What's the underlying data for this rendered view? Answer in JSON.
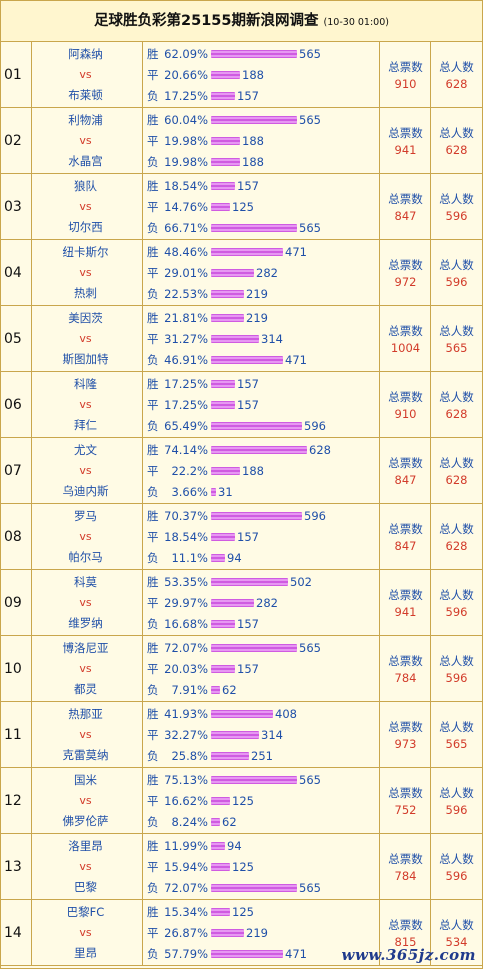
{
  "header": {
    "title": "足球胜负彩第25155期新浪网调查",
    "time": "(10-30 01:00)"
  },
  "labels": {
    "tickets": "总票数",
    "people": "总人数",
    "vs": "vs"
  },
  "max_count": 628,
  "colors": {
    "team": "#1f4fa8",
    "accent": "#d23b2a",
    "bar": "#c43dd9",
    "border": "#c9a64c"
  },
  "watermark": "www.365jz.com",
  "matches": [
    {
      "num": "01",
      "home": "阿森纳",
      "away": "布莱顿",
      "odds": [
        {
          "label": "胜",
          "pct": "62.09%",
          "count": 565
        },
        {
          "label": "平",
          "pct": "20.66%",
          "count": 188
        },
        {
          "label": "负",
          "pct": "17.25%",
          "count": 157
        }
      ],
      "tickets": "910",
      "people": "628"
    },
    {
      "num": "02",
      "home": "利物浦",
      "away": "水晶宫",
      "odds": [
        {
          "label": "胜",
          "pct": "60.04%",
          "count": 565
        },
        {
          "label": "平",
          "pct": "19.98%",
          "count": 188
        },
        {
          "label": "负",
          "pct": "19.98%",
          "count": 188
        }
      ],
      "tickets": "941",
      "people": "628"
    },
    {
      "num": "03",
      "home": "狼队",
      "away": "切尔西",
      "odds": [
        {
          "label": "胜",
          "pct": "18.54%",
          "count": 157
        },
        {
          "label": "平",
          "pct": "14.76%",
          "count": 125
        },
        {
          "label": "负",
          "pct": "66.71%",
          "count": 565
        }
      ],
      "tickets": "847",
      "people": "596"
    },
    {
      "num": "04",
      "home": "纽卡斯尔",
      "away": "热刺",
      "odds": [
        {
          "label": "胜",
          "pct": "48.46%",
          "count": 471
        },
        {
          "label": "平",
          "pct": "29.01%",
          "count": 282
        },
        {
          "label": "负",
          "pct": "22.53%",
          "count": 219
        }
      ],
      "tickets": "972",
      "people": "596"
    },
    {
      "num": "05",
      "home": "美因茨",
      "away": "斯图加特",
      "odds": [
        {
          "label": "胜",
          "pct": "21.81%",
          "count": 219
        },
        {
          "label": "平",
          "pct": "31.27%",
          "count": 314
        },
        {
          "label": "负",
          "pct": "46.91%",
          "count": 471
        }
      ],
      "tickets": "1004",
      "people": "565"
    },
    {
      "num": "06",
      "home": "科隆",
      "away": "拜仁",
      "odds": [
        {
          "label": "胜",
          "pct": "17.25%",
          "count": 157
        },
        {
          "label": "平",
          "pct": "17.25%",
          "count": 157
        },
        {
          "label": "负",
          "pct": "65.49%",
          "count": 596
        }
      ],
      "tickets": "910",
      "people": "628"
    },
    {
      "num": "07",
      "home": "尤文",
      "away": "乌迪内斯",
      "odds": [
        {
          "label": "胜",
          "pct": "74.14%",
          "count": 628
        },
        {
          "label": "平",
          "pct": "22.2%",
          "count": 188
        },
        {
          "label": "负",
          "pct": "3.66%",
          "count": 31
        }
      ],
      "tickets": "847",
      "people": "628"
    },
    {
      "num": "08",
      "home": "罗马",
      "away": "帕尔马",
      "odds": [
        {
          "label": "胜",
          "pct": "70.37%",
          "count": 596
        },
        {
          "label": "平",
          "pct": "18.54%",
          "count": 157
        },
        {
          "label": "负",
          "pct": "11.1%",
          "count": 94
        }
      ],
      "tickets": "847",
      "people": "628"
    },
    {
      "num": "09",
      "home": "科莫",
      "away": "维罗纳",
      "odds": [
        {
          "label": "胜",
          "pct": "53.35%",
          "count": 502
        },
        {
          "label": "平",
          "pct": "29.97%",
          "count": 282
        },
        {
          "label": "负",
          "pct": "16.68%",
          "count": 157
        }
      ],
      "tickets": "941",
      "people": "596"
    },
    {
      "num": "10",
      "home": "博洛尼亚",
      "away": "都灵",
      "odds": [
        {
          "label": "胜",
          "pct": "72.07%",
          "count": 565
        },
        {
          "label": "平",
          "pct": "20.03%",
          "count": 157
        },
        {
          "label": "负",
          "pct": "7.91%",
          "count": 62
        }
      ],
      "tickets": "784",
      "people": "596"
    },
    {
      "num": "11",
      "home": "热那亚",
      "away": "克雷莫纳",
      "odds": [
        {
          "label": "胜",
          "pct": "41.93%",
          "count": 408
        },
        {
          "label": "平",
          "pct": "32.27%",
          "count": 314
        },
        {
          "label": "负",
          "pct": "25.8%",
          "count": 251
        }
      ],
      "tickets": "973",
      "people": "565"
    },
    {
      "num": "12",
      "home": "国米",
      "away": "佛罗伦萨",
      "odds": [
        {
          "label": "胜",
          "pct": "75.13%",
          "count": 565
        },
        {
          "label": "平",
          "pct": "16.62%",
          "count": 125
        },
        {
          "label": "负",
          "pct": "8.24%",
          "count": 62
        }
      ],
      "tickets": "752",
      "people": "596"
    },
    {
      "num": "13",
      "home": "洛里昂",
      "away": "巴黎",
      "odds": [
        {
          "label": "胜",
          "pct": "11.99%",
          "count": 94
        },
        {
          "label": "平",
          "pct": "15.94%",
          "count": 125
        },
        {
          "label": "负",
          "pct": "72.07%",
          "count": 565
        }
      ],
      "tickets": "784",
      "people": "596"
    },
    {
      "num": "14",
      "home": "巴黎FC",
      "away": "里昂",
      "odds": [
        {
          "label": "胜",
          "pct": "15.34%",
          "count": 125
        },
        {
          "label": "平",
          "pct": "26.87%",
          "count": 219
        },
        {
          "label": "负",
          "pct": "57.79%",
          "count": 471
        }
      ],
      "tickets": "815",
      "people": "534"
    }
  ]
}
